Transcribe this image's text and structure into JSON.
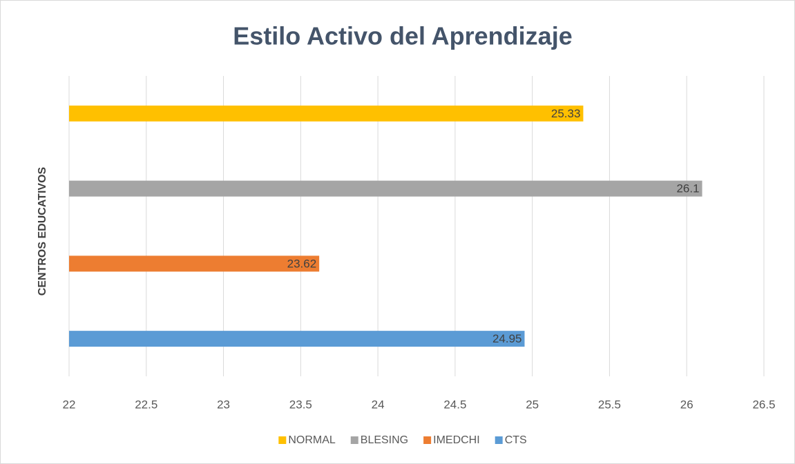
{
  "chart_data": {
    "type": "bar",
    "orientation": "horizontal",
    "title": "Estilo Activo del Aprendizaje",
    "y_axis_label": "CENTROS EDUCATIVOS",
    "categories": [
      null
    ],
    "series": [
      {
        "name": "NORMAL",
        "color": "#FFC000",
        "values": [
          25.33
        ]
      },
      {
        "name": "BLESING",
        "color": "#A5A5A5",
        "values": [
          26.1
        ]
      },
      {
        "name": "IMEDCHI",
        "color": "#ED7D31",
        "values": [
          23.62
        ]
      },
      {
        "name": "CTS",
        "color": "#5B9BD5",
        "values": [
          24.95
        ]
      }
    ],
    "xlim": [
      22,
      26.5
    ],
    "xticks": [
      22,
      22.5,
      23,
      23.5,
      24,
      24.5,
      25,
      25.5,
      26,
      26.5
    ],
    "grid": true,
    "legend": "bottom"
  }
}
